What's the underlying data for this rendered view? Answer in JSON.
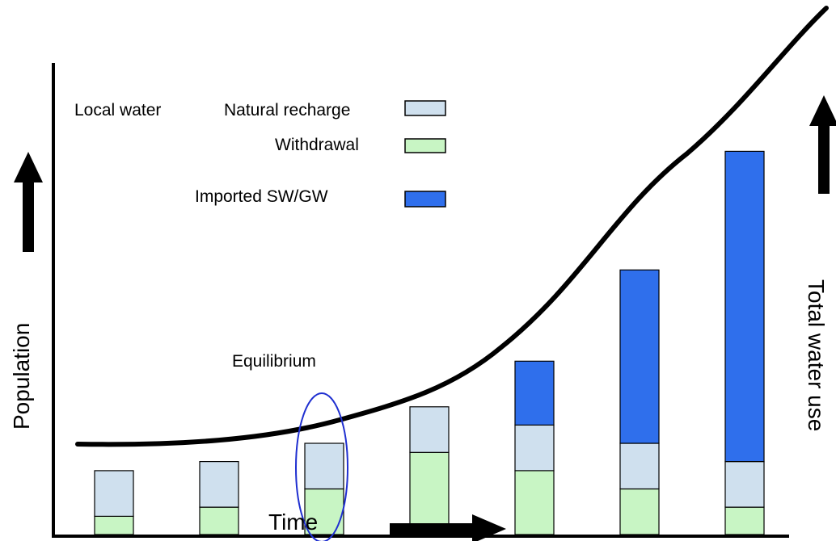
{
  "diagram": {
    "labels": {
      "local_water": "Local water",
      "natural_recharge": "Natural recharge",
      "withdrawal": "Withdrawal",
      "imported": "Imported SW/GW",
      "equilibrium": "Equilibrium",
      "population": "Population",
      "total_water_use": "Total water use",
      "time": "Time"
    },
    "colors": {
      "natural_recharge": "#cfe0ee",
      "withdrawal": "#c8f5c4",
      "imported": "#2f6fec",
      "curve": "#000000",
      "equilibrium_ring": "#1f2fd0"
    },
    "bars": [
      {
        "period": 1,
        "withdrawal": 1,
        "natural_recharge": 2.5,
        "imported": 0
      },
      {
        "period": 2,
        "withdrawal": 1.5,
        "natural_recharge": 2.5,
        "imported": 0
      },
      {
        "period": 3,
        "withdrawal": 2.5,
        "natural_recharge": 2.5,
        "imported": 0,
        "equilibrium": true
      },
      {
        "period": 4,
        "withdrawal": 4.5,
        "natural_recharge": 2.5,
        "imported": 0
      },
      {
        "period": 5,
        "withdrawal": 3.5,
        "natural_recharge": 2.5,
        "imported": 3.5
      },
      {
        "period": 6,
        "withdrawal": 2.5,
        "natural_recharge": 2.5,
        "imported": 9.5
      },
      {
        "period": 7,
        "withdrawal": 1.5,
        "natural_recharge": 2.5,
        "imported": 17
      }
    ]
  }
}
